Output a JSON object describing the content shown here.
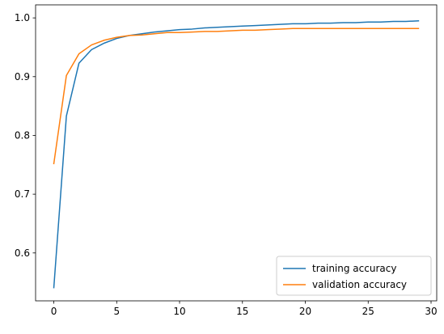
{
  "chart_data": {
    "type": "line",
    "title": "",
    "xlabel": "",
    "ylabel": "",
    "xlim": [
      -1.45,
      30.45
    ],
    "ylim": [
      0.5185,
      1.0222
    ],
    "xticks": [
      0,
      5,
      10,
      15,
      20,
      25,
      30
    ],
    "yticks": [
      0.6,
      0.7,
      0.8,
      0.9,
      1.0
    ],
    "xtick_labels": [
      "0",
      "5",
      "10",
      "15",
      "20",
      "25",
      "30"
    ],
    "ytick_labels": [
      "0.6",
      "0.7",
      "0.8",
      "0.9",
      "1.0"
    ],
    "grid": false,
    "legend_position": "lower-right",
    "x": [
      0,
      1,
      2,
      3,
      4,
      5,
      6,
      7,
      8,
      9,
      10,
      11,
      12,
      13,
      14,
      15,
      16,
      17,
      18,
      19,
      20,
      21,
      22,
      23,
      24,
      25,
      26,
      27,
      28,
      29
    ],
    "series": [
      {
        "name": "training accuracy",
        "color": "#1f77b4",
        "values": [
          0.541,
          0.833,
          0.923,
          0.946,
          0.957,
          0.965,
          0.97,
          0.973,
          0.976,
          0.978,
          0.98,
          0.981,
          0.983,
          0.984,
          0.985,
          0.986,
          0.987,
          0.988,
          0.989,
          0.99,
          0.99,
          0.991,
          0.991,
          0.992,
          0.992,
          0.993,
          0.993,
          0.994,
          0.994,
          0.995
        ]
      },
      {
        "name": "validation accuracy",
        "color": "#ff7f0e",
        "values": [
          0.752,
          0.902,
          0.939,
          0.954,
          0.962,
          0.967,
          0.97,
          0.971,
          0.973,
          0.975,
          0.975,
          0.976,
          0.977,
          0.977,
          0.978,
          0.979,
          0.979,
          0.98,
          0.981,
          0.982,
          0.982,
          0.982,
          0.982,
          0.982,
          0.982,
          0.982,
          0.982,
          0.982,
          0.982,
          0.982
        ]
      }
    ]
  }
}
